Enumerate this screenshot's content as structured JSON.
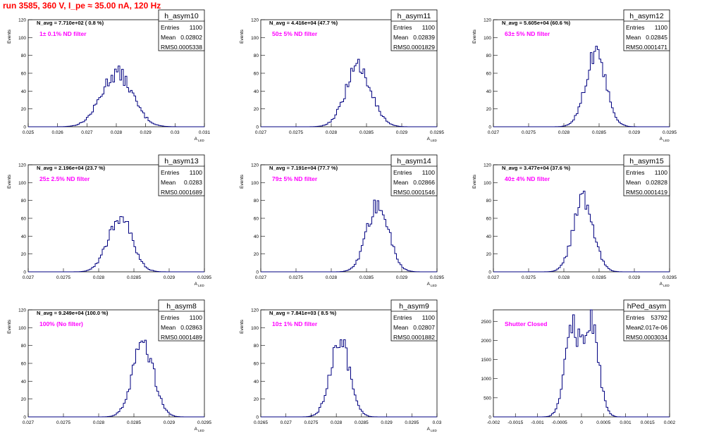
{
  "page": {
    "title": "run 3585,   360 V, I_pe ≈ 35.00 nA, 120 Hz"
  },
  "chart_data": [
    {
      "type": "histogram",
      "name": "h_asym10",
      "naverage": "N_avg = 7.710e+02 ( 0.8 %)",
      "filter_label": "1± 0.1% ND filter",
      "stats": {
        "entries": "1100",
        "mean": "0.02802",
        "rms": "0.0005338"
      },
      "ylabel": "Events",
      "xlabel": "A_{LED}",
      "xlim": [
        0.025,
        0.031
      ],
      "ylim": [
        0,
        120
      ],
      "xticks": [
        "0.025",
        "0.026",
        "0.027",
        "0.028",
        "0.029",
        "0.03",
        "0.031"
      ],
      "yticks": [
        "0",
        "20",
        "40",
        "60",
        "80",
        "100",
        "120"
      ],
      "shape": {
        "mu": 0.02802,
        "sigma": 0.0005338,
        "peak": 60
      }
    },
    {
      "type": "histogram",
      "name": "h_asym11",
      "naverage": "N_avg = 4.416e+04 (47.7 %)",
      "filter_label": "50± 5% ND filter",
      "stats": {
        "entries": "1100",
        "mean": "0.02839",
        "rms": "0.0001829"
      },
      "ylabel": "Events",
      "xlabel": "A_{LED}",
      "xlim": [
        0.027,
        0.0295
      ],
      "ylim": [
        0,
        120
      ],
      "xticks": [
        "0.027",
        "0.0275",
        "0.028",
        "0.0285",
        "0.029",
        "0.0295"
      ],
      "yticks": [
        "0",
        "20",
        "40",
        "60",
        "80",
        "100",
        "120"
      ],
      "shape": {
        "mu": 0.02839,
        "sigma": 0.0001829,
        "peak": 67
      }
    },
    {
      "type": "histogram",
      "name": "h_asym12",
      "naverage": "N_avg = 5.605e+04 (60.6 %)",
      "filter_label": "63± 5% ND filter",
      "stats": {
        "entries": "1100",
        "mean": "0.02845",
        "rms": "0.0001471"
      },
      "ylabel": "Events",
      "xlabel": "A_{LED}",
      "xlim": [
        0.027,
        0.0295
      ],
      "ylim": [
        0,
        120
      ],
      "xticks": [
        "0.027",
        "0.0275",
        "0.028",
        "0.0285",
        "0.029",
        "0.0295"
      ],
      "yticks": [
        "0",
        "20",
        "40",
        "60",
        "80",
        "100",
        "120"
      ],
      "shape": {
        "mu": 0.02845,
        "sigma": 0.0001471,
        "peak": 80
      }
    },
    {
      "type": "histogram",
      "name": "h_asym13",
      "naverage": "N_avg = 2.196e+04 (23.7 %)",
      "filter_label": "25± 2.5% ND filter",
      "stats": {
        "entries": "1100",
        "mean": "0.0283",
        "rms": "0.0001689"
      },
      "ylabel": "Events",
      "xlabel": "A_{LED}",
      "xlim": [
        0.027,
        0.0295
      ],
      "ylim": [
        0,
        120
      ],
      "xticks": [
        "0.027",
        "0.0275",
        "0.028",
        "0.0285",
        "0.029",
        "0.0295"
      ],
      "yticks": [
        "0",
        "20",
        "40",
        "60",
        "80",
        "100",
        "120"
      ],
      "shape": {
        "mu": 0.0283,
        "sigma": 0.0001689,
        "peak": 62
      }
    },
    {
      "type": "histogram",
      "name": "h_asym14",
      "naverage": "N_avg = 7.191e+04 (77.7 %)",
      "filter_label": "79± 5% ND filter",
      "stats": {
        "entries": "1100",
        "mean": "0.02866",
        "rms": "0.0001546"
      },
      "ylabel": "Events",
      "xlabel": "A_{LED}",
      "xlim": [
        0.027,
        0.0295
      ],
      "ylim": [
        0,
        120
      ],
      "xticks": [
        "0.027",
        "0.0275",
        "0.028",
        "0.0285",
        "0.029",
        "0.0295"
      ],
      "yticks": [
        "0",
        "20",
        "40",
        "60",
        "80",
        "100",
        "120"
      ],
      "shape": {
        "mu": 0.02866,
        "sigma": 0.0001546,
        "peak": 75
      }
    },
    {
      "type": "histogram",
      "name": "h_asym15",
      "naverage": "N_avg = 3.477e+04 (37.6 %)",
      "filter_label": "40± 4% ND filter",
      "stats": {
        "entries": "1100",
        "mean": "0.02828",
        "rms": "0.0001419"
      },
      "ylabel": "Events",
      "xlabel": "A_{LED}",
      "xlim": [
        0.027,
        0.0295
      ],
      "ylim": [
        0,
        120
      ],
      "xticks": [
        "0.027",
        "0.0275",
        "0.028",
        "0.0285",
        "0.029",
        "0.0295"
      ],
      "yticks": [
        "0",
        "20",
        "40",
        "60",
        "80",
        "100",
        "120"
      ],
      "shape": {
        "mu": 0.02828,
        "sigma": 0.0001419,
        "peak": 82
      }
    },
    {
      "type": "histogram",
      "name": "h_asym8",
      "naverage": "N_avg = 9.249e+04 (100.0 %)",
      "filter_label": "100% (No filter)",
      "stats": {
        "entries": "1100",
        "mean": "0.02863",
        "rms": "0.0001489"
      },
      "ylabel": "Events",
      "xlabel": "A_{LED}",
      "xlim": [
        0.027,
        0.0295
      ],
      "ylim": [
        0,
        120
      ],
      "xticks": [
        "0.027",
        "0.0275",
        "0.028",
        "0.0285",
        "0.029",
        "0.0295"
      ],
      "yticks": [
        "0",
        "20",
        "40",
        "60",
        "80",
        "100",
        "120"
      ],
      "shape": {
        "mu": 0.02863,
        "sigma": 0.0001489,
        "peak": 84
      }
    },
    {
      "type": "histogram",
      "name": "h_asym9",
      "naverage": "N_avg = 7.841e+03 ( 8.5 %)",
      "filter_label": "10± 1% ND filter",
      "stats": {
        "entries": "1100",
        "mean": "0.02807",
        "rms": "0.0001882"
      },
      "ylabel": "Events",
      "xlabel": "A_{LED}",
      "xlim": [
        0.0265,
        0.03
      ],
      "ylim": [
        0,
        120
      ],
      "xticks": [
        "0.0265",
        "0.027",
        "0.0275",
        "0.028",
        "0.0285",
        "0.029",
        "0.0295",
        "0.03"
      ],
      "yticks": [
        "0",
        "20",
        "40",
        "60",
        "80",
        "100",
        "120"
      ],
      "shape": {
        "mu": 0.02807,
        "sigma": 0.0001882,
        "peak": 88
      }
    },
    {
      "type": "histogram",
      "name": "hPed_asym",
      "naverage": "",
      "filter_label": "Shutter Closed",
      "stats": {
        "entries": "53792",
        "mean": "-2.017e-06",
        "rms": "0.0003034"
      },
      "ylabel": "",
      "xlabel": "",
      "xlim": [
        -0.002,
        0.002
      ],
      "ylim": [
        0,
        2800
      ],
      "xticks": [
        "-0.002",
        "-0.0015",
        "-0.001",
        "-0.0005",
        "0",
        "0.0005",
        "0.001",
        "0.0015",
        "0.002"
      ],
      "yticks": [
        "0",
        "500",
        "1000",
        "1500",
        "2000",
        "2500"
      ],
      "shape": {
        "mu": -2e-06,
        "sigma": 0.0003034,
        "peak": 2550,
        "bimodal": true
      }
    }
  ]
}
